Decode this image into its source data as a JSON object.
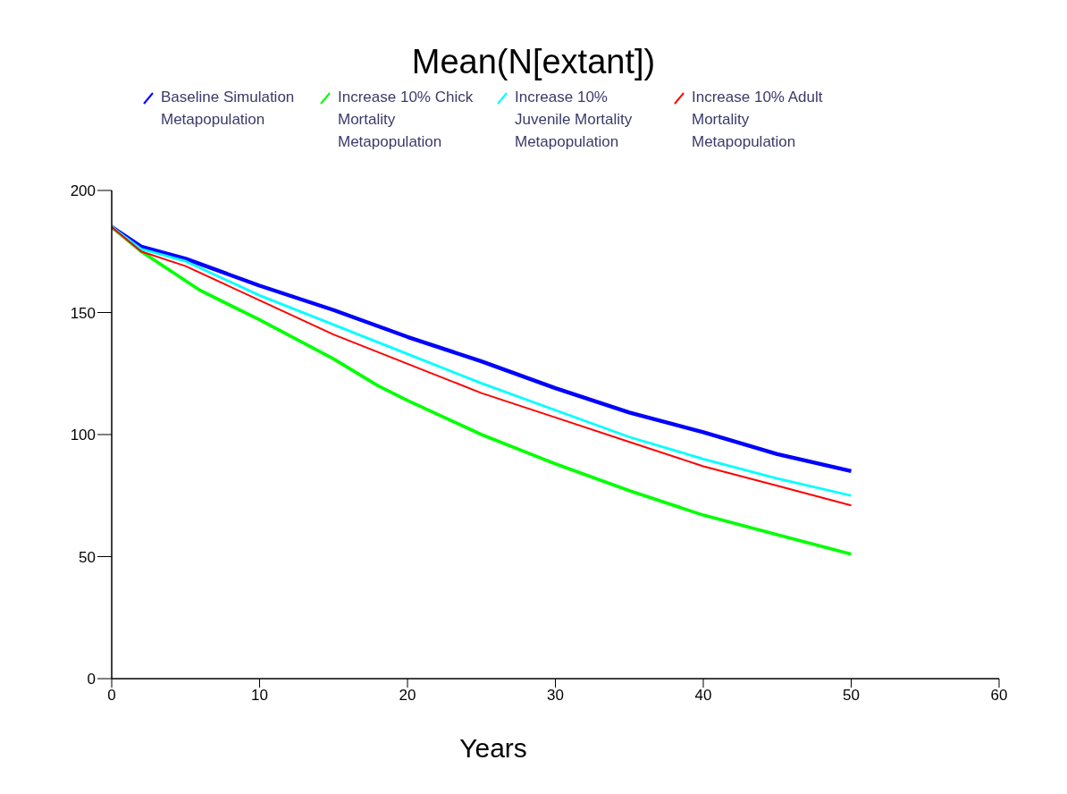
{
  "chart_data": {
    "type": "line",
    "title": "Mean(N[extant])",
    "xlabel": "Years",
    "xlim": [
      0,
      60
    ],
    "xticks": [
      0,
      10,
      20,
      30,
      40,
      50,
      60
    ],
    "ylim": [
      0,
      200
    ],
    "yticks": [
      0,
      50,
      100,
      150,
      200
    ],
    "grid": false,
    "legend": "top",
    "marker": "none",
    "line_style": "solid",
    "series": [
      {
        "name": "Baseline Simulation Metapopulation",
        "color": "#0000ff",
        "x": [
          0,
          2,
          5,
          10,
          15,
          20,
          25,
          30,
          35,
          40,
          45,
          50
        ],
        "values": [
          185,
          177,
          172,
          161,
          151,
          140,
          130,
          119,
          109,
          101,
          92,
          85
        ]
      },
      {
        "name": "Increase 10% Chick Mortality Metapopulation",
        "color": "#00ff00",
        "x": [
          0,
          2,
          6,
          10,
          15,
          18,
          20,
          25,
          30,
          35,
          40,
          45,
          50
        ],
        "values": [
          185,
          175,
          159,
          147,
          131,
          120,
          114,
          100,
          88,
          77,
          67,
          59,
          51
        ]
      },
      {
        "name": "Increase 10% Juvenile Mortality Metapopulation",
        "color": "#00ffff",
        "x": [
          0,
          2,
          5,
          10,
          15,
          20,
          25,
          30,
          35,
          40,
          45,
          50
        ],
        "values": [
          185,
          176,
          171,
          157,
          145,
          133,
          121,
          110,
          99,
          90,
          82,
          75
        ]
      },
      {
        "name": "Increase 10% Adult Mortality Metapopulation",
        "color": "#ff0000",
        "x": [
          0,
          2,
          5,
          10,
          15,
          20,
          25,
          30,
          35,
          40,
          45,
          50
        ],
        "values": [
          185,
          175,
          169,
          155,
          141,
          129,
          117,
          107,
          97,
          87,
          79,
          71
        ]
      }
    ]
  }
}
